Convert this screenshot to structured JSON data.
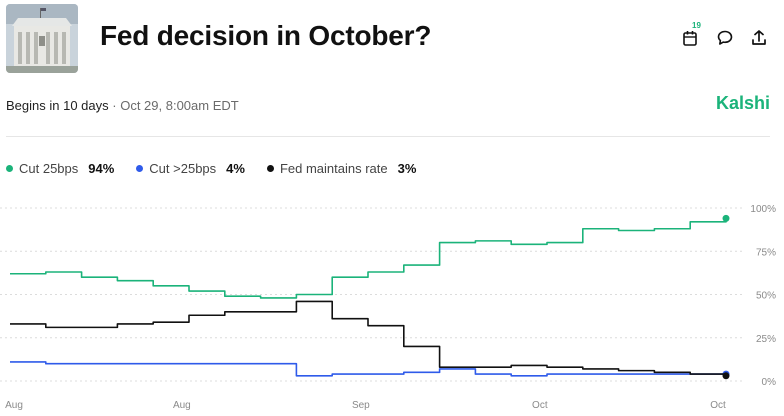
{
  "header": {
    "title": "Fed decision in October?",
    "calendar_count": "19",
    "thumbnail_alt": "Federal Reserve building"
  },
  "meta": {
    "begins": "Begins in 10 days",
    "separator": "·",
    "date": "Oct 29, 8:00am EDT"
  },
  "brand": {
    "name": "Kalshi",
    "color": "#1bb37a"
  },
  "legend": [
    {
      "label": "Cut 25bps",
      "value": "94%",
      "color": "#1bb37a"
    },
    {
      "label": "Cut >25bps",
      "value": "4%",
      "color": "#2f5bea"
    },
    {
      "label": "Fed maintains rate",
      "value": "3%",
      "color": "#111111"
    }
  ],
  "chart_data": {
    "type": "line",
    "title": "",
    "ylabel": "",
    "xlabel": "",
    "ylim": [
      0,
      100
    ],
    "y_ticks": [
      0,
      25,
      50,
      75,
      100
    ],
    "y_tick_labels": [
      "0%",
      "25%",
      "50%",
      "75%",
      "100%"
    ],
    "x": [
      0,
      5,
      10,
      15,
      20,
      25,
      30,
      35,
      40,
      45,
      50,
      55,
      60,
      65,
      70,
      75,
      80,
      85,
      90,
      95,
      100
    ],
    "x_tick_labels": [
      {
        "label": "Aug",
        "at": 0
      },
      {
        "label": "Aug",
        "at": 24
      },
      {
        "label": "Sep",
        "at": 49
      },
      {
        "label": "Oct",
        "at": 74
      },
      {
        "label": "Oct",
        "at": 100
      }
    ],
    "series": [
      {
        "name": "Cut 25bps",
        "color": "#1bb37a",
        "values": [
          62,
          63,
          60,
          58,
          55,
          52,
          49,
          48,
          50,
          60,
          63,
          67,
          80,
          81,
          79,
          80,
          88,
          87,
          88,
          92,
          94
        ]
      },
      {
        "name": "Cut >25bps",
        "color": "#2f5bea",
        "values": [
          11,
          10,
          10,
          10,
          10,
          10,
          10,
          10,
          3,
          4,
          4,
          5,
          7,
          4,
          3,
          4,
          4,
          4,
          4,
          4,
          4
        ]
      },
      {
        "name": "Fed maintains rate",
        "color": "#111111",
        "values": [
          33,
          31,
          31,
          33,
          34,
          38,
          40,
          40,
          46,
          36,
          32,
          20,
          8,
          8,
          9,
          8,
          7,
          6,
          5,
          4,
          3
        ]
      }
    ]
  }
}
